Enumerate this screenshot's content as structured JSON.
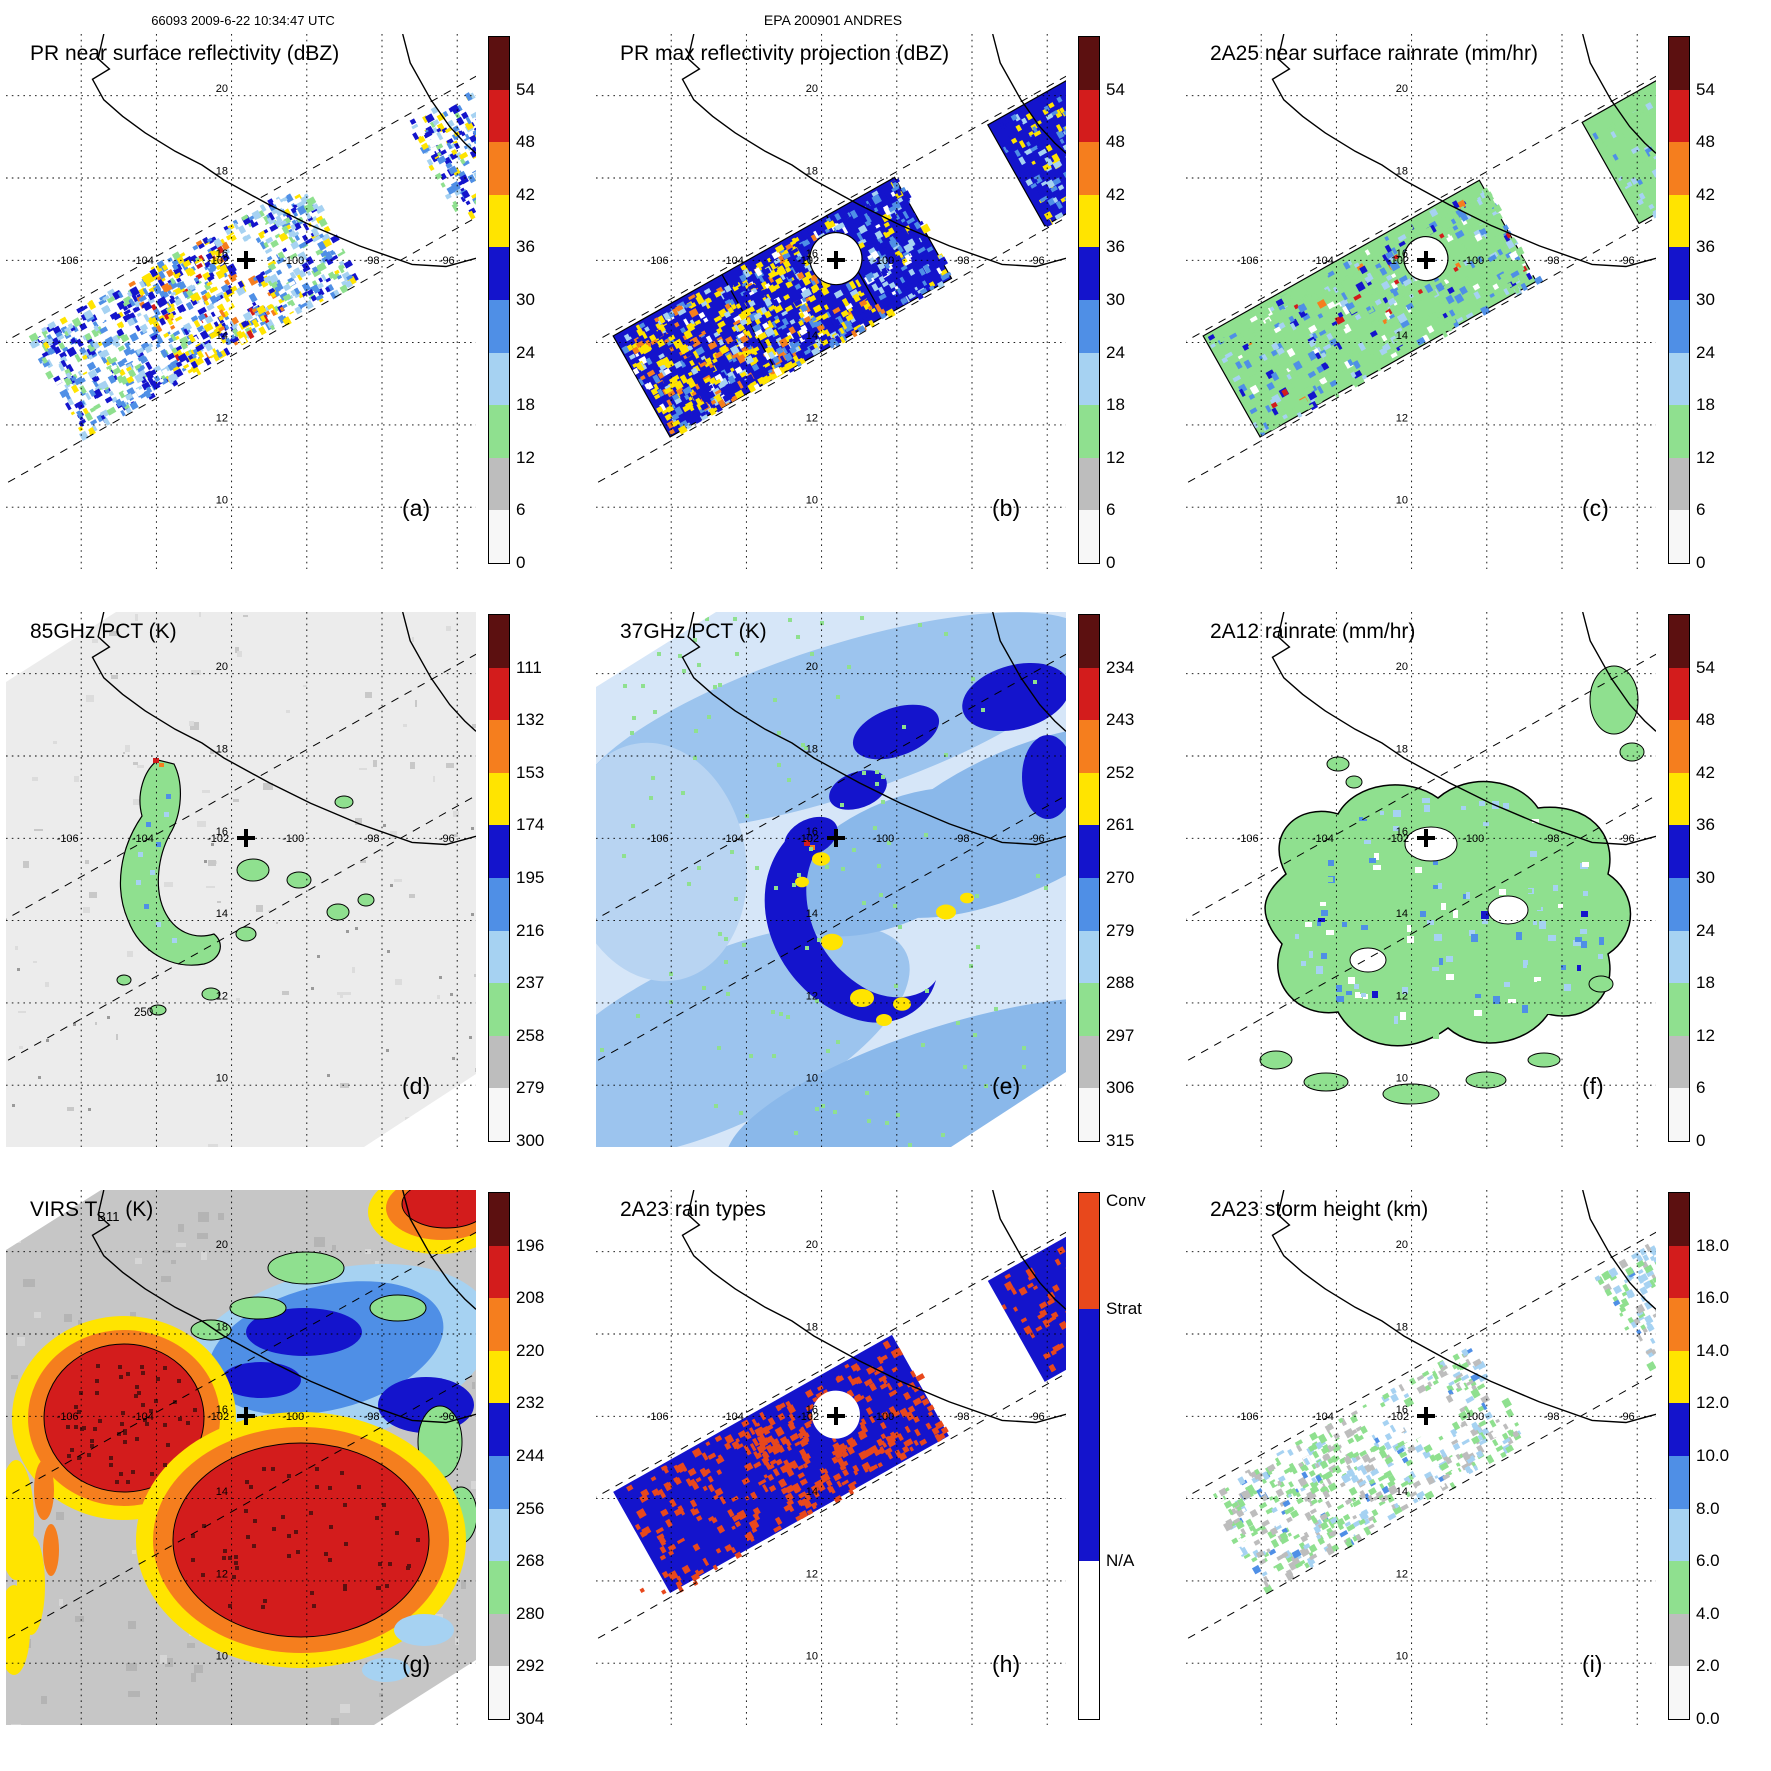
{
  "header": {
    "left": "66093 2009-6-22 10:34:47 UTC",
    "center": "EPA 200901 ANDRES"
  },
  "map": {
    "lon_labels": [
      "-106",
      "-104",
      "-102",
      "-100",
      "-98",
      "-96"
    ],
    "lat_labels": [
      "20",
      "18",
      "16",
      "14",
      "12",
      "10"
    ]
  },
  "colors": {
    "scale_rainbow": [
      "#5c1010",
      "#d31c1c",
      "#f57e1e",
      "#ffe400",
      "#1414cc",
      "#4f8fe6",
      "#a6d2f2",
      "#8fe08f",
      "#bdbdbd",
      "#f7f7f7"
    ],
    "rain_type": {
      "conv": "#e8481c",
      "strat": "#1414cc",
      "na": "#ffffff"
    },
    "land_outline": "#000000",
    "background": "#ffffff",
    "pct85_field": "#ececec",
    "pct37_field": "#d6e6f8"
  },
  "panels": [
    {
      "id": "a",
      "letter": "(a)",
      "title": "PR near surface reflectivity (dBZ)",
      "scale": "rainbow",
      "colorbar_ticks": [
        "54",
        "48",
        "42",
        "36",
        "30",
        "24",
        "18",
        "12",
        "6",
        "0"
      ]
    },
    {
      "id": "b",
      "letter": "(b)",
      "title": "PR max reflectivity projection (dBZ)",
      "scale": "rainbow",
      "colorbar_ticks": [
        "54",
        "48",
        "42",
        "36",
        "30",
        "24",
        "18",
        "12",
        "6",
        "0"
      ]
    },
    {
      "id": "c",
      "letter": "(c)",
      "title": "2A25 near surface rainrate (mm/hr)",
      "scale": "rainbow",
      "colorbar_ticks": [
        "54",
        "48",
        "42",
        "36",
        "30",
        "24",
        "18",
        "12",
        "6",
        "0"
      ]
    },
    {
      "id": "d",
      "letter": "(d)",
      "title": "85GHz PCT (K)",
      "scale": "rainbow",
      "colorbar_ticks": [
        "111",
        "132",
        "153",
        "174",
        "195",
        "216",
        "237",
        "258",
        "279",
        "300"
      ],
      "contour_label": "250"
    },
    {
      "id": "e",
      "letter": "(e)",
      "title": "37GHz PCT (K)",
      "scale": "rainbow",
      "colorbar_ticks": [
        "234",
        "243",
        "252",
        "261",
        "270",
        "279",
        "288",
        "297",
        "306",
        "315"
      ]
    },
    {
      "id": "f",
      "letter": "(f)",
      "title": "2A12 rainrate (mm/hr)",
      "scale": "rainbow",
      "colorbar_ticks": [
        "54",
        "48",
        "42",
        "36",
        "30",
        "24",
        "18",
        "12",
        "6",
        "0"
      ]
    },
    {
      "id": "g",
      "letter": "(g)",
      "title_prefix": "VIRS T",
      "title_sub": "B11",
      "title_suffix": " (K)",
      "scale": "rainbow",
      "colorbar_ticks": [
        "196",
        "208",
        "220",
        "232",
        "244",
        "256",
        "268",
        "280",
        "292",
        "304"
      ]
    },
    {
      "id": "h",
      "letter": "(h)",
      "title": "2A23 rain types",
      "scale": "raintype",
      "rain_type_labels": [
        "Conv",
        "Strat",
        "N/A"
      ]
    },
    {
      "id": "i",
      "letter": "(i)",
      "title": "2A23 storm height (km)",
      "scale": "rainbow",
      "colorbar_ticks": [
        "18.0",
        "16.0",
        "14.0",
        "12.0",
        "10.0",
        "8.0",
        "6.0",
        "4.0",
        "2.0",
        "0.0"
      ]
    }
  ],
  "chart_data": [
    {
      "panel": "a",
      "type": "heatmap",
      "title": "PR near surface reflectivity (dBZ)",
      "units": "dBZ",
      "value_ticks": [
        54,
        48,
        42,
        36,
        30,
        24,
        18,
        12,
        6,
        0
      ],
      "x_ticks": [
        -106,
        -104,
        -102,
        -100,
        -98,
        -96
      ],
      "y_ticks": [
        20,
        18,
        16,
        14,
        12,
        10
      ],
      "storm_center": {
        "lon": -102,
        "lat": 16
      },
      "grid": true,
      "colorbar": "right"
    },
    {
      "panel": "b",
      "type": "heatmap",
      "title": "PR max reflectivity projection (dBZ)",
      "units": "dBZ",
      "value_ticks": [
        54,
        48,
        42,
        36,
        30,
        24,
        18,
        12,
        6,
        0
      ],
      "x_ticks": [
        -106,
        -104,
        -102,
        -100,
        -98,
        -96
      ],
      "y_ticks": [
        20,
        18,
        16,
        14,
        12,
        10
      ],
      "storm_center": {
        "lon": -102,
        "lat": 16
      },
      "grid": true,
      "colorbar": "right"
    },
    {
      "panel": "c",
      "type": "heatmap",
      "title": "2A25 near surface rainrate (mm/hr)",
      "units": "mm/hr",
      "value_ticks": [
        54,
        48,
        42,
        36,
        30,
        24,
        18,
        12,
        6,
        0
      ],
      "x_ticks": [
        -106,
        -104,
        -102,
        -100,
        -98,
        -96
      ],
      "y_ticks": [
        20,
        18,
        16,
        14,
        12,
        10
      ],
      "storm_center": {
        "lon": -102,
        "lat": 16
      },
      "grid": true,
      "colorbar": "right"
    },
    {
      "panel": "d",
      "type": "heatmap",
      "title": "85GHz PCT (K)",
      "units": "K",
      "value_ticks": [
        111,
        132,
        153,
        174,
        195,
        216,
        237,
        258,
        279,
        300
      ],
      "contour_labels": [
        250
      ],
      "x_ticks": [
        -106,
        -104,
        -102,
        -100,
        -98,
        -96
      ],
      "y_ticks": [
        20,
        18,
        16,
        14,
        12,
        10
      ],
      "storm_center": {
        "lon": -102,
        "lat": 16
      },
      "grid": true,
      "colorbar": "right"
    },
    {
      "panel": "e",
      "type": "heatmap",
      "title": "37GHz PCT (K)",
      "units": "K",
      "value_ticks": [
        234,
        243,
        252,
        261,
        270,
        279,
        288,
        297,
        306,
        315
      ],
      "x_ticks": [
        -106,
        -104,
        -102,
        -100,
        -98,
        -96
      ],
      "y_ticks": [
        20,
        18,
        16,
        14,
        12,
        10
      ],
      "storm_center": {
        "lon": -102,
        "lat": 16
      },
      "grid": true,
      "colorbar": "right"
    },
    {
      "panel": "f",
      "type": "heatmap",
      "title": "2A12 rainrate (mm/hr)",
      "units": "mm/hr",
      "value_ticks": [
        54,
        48,
        42,
        36,
        30,
        24,
        18,
        12,
        6,
        0
      ],
      "x_ticks": [
        -106,
        -104,
        -102,
        -100,
        -98,
        -96
      ],
      "y_ticks": [
        20,
        18,
        16,
        14,
        12,
        10
      ],
      "storm_center": {
        "lon": -102,
        "lat": 16
      },
      "grid": true,
      "colorbar": "right"
    },
    {
      "panel": "g",
      "type": "heatmap",
      "title": "VIRS TB11 (K)",
      "units": "K",
      "value_ticks": [
        196,
        208,
        220,
        232,
        244,
        256,
        268,
        280,
        292,
        304
      ],
      "x_ticks": [
        -106,
        -104,
        -102,
        -100,
        -98,
        -96
      ],
      "y_ticks": [
        20,
        18,
        16,
        14,
        12,
        10
      ],
      "storm_center": {
        "lon": -102,
        "lat": 16
      },
      "grid": true,
      "colorbar": "right"
    },
    {
      "panel": "h",
      "type": "heatmap",
      "title": "2A23 rain types",
      "categories": [
        "Conv",
        "Strat",
        "N/A"
      ],
      "x_ticks": [
        -106,
        -104,
        -102,
        -100,
        -98,
        -96
      ],
      "y_ticks": [
        20,
        18,
        16,
        14,
        12,
        10
      ],
      "storm_center": {
        "lon": -102,
        "lat": 16
      },
      "grid": true,
      "colorbar": "right"
    },
    {
      "panel": "i",
      "type": "heatmap",
      "title": "2A23 storm height (km)",
      "units": "km",
      "value_ticks": [
        18.0,
        16.0,
        14.0,
        12.0,
        10.0,
        8.0,
        6.0,
        4.0,
        2.0,
        0.0
      ],
      "x_ticks": [
        -106,
        -104,
        -102,
        -100,
        -98,
        -96
      ],
      "y_ticks": [
        20,
        18,
        16,
        14,
        12,
        10
      ],
      "storm_center": {
        "lon": -102,
        "lat": 16
      },
      "grid": true,
      "colorbar": "right"
    }
  ]
}
